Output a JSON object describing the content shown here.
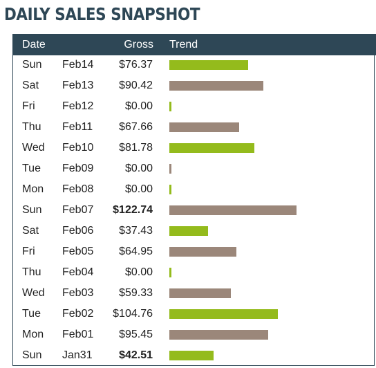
{
  "header": {
    "title": "DAILY SALES SNAPSHOT"
  },
  "table": {
    "columns": [
      "Date",
      "Gross",
      "Trend"
    ],
    "rows": [
      {
        "day": "Sun",
        "date": "Feb14",
        "gross": {
          "value": 76.37,
          "label": "$76.37"
        },
        "color": "#94bb1c",
        "bold": false
      },
      {
        "day": "Sat",
        "date": "Feb13",
        "gross": {
          "value": 90.42,
          "label": "$90.42"
        },
        "color": "#9b877a",
        "bold": false
      },
      {
        "day": "Fri",
        "date": "Feb12",
        "gross": {
          "value": 0,
          "label": "$0.00"
        },
        "color": "#94bb1c",
        "bold": false
      },
      {
        "day": "Thu",
        "date": "Feb11",
        "gross": {
          "value": 67.66,
          "label": "$67.66"
        },
        "color": "#9b877a",
        "bold": false
      },
      {
        "day": "Wed",
        "date": "Feb10",
        "gross": {
          "value": 81.78,
          "label": "$81.78"
        },
        "color": "#94bb1c",
        "bold": false
      },
      {
        "day": "Tue",
        "date": "Feb09",
        "gross": {
          "value": 0,
          "label": "$0.00"
        },
        "color": "#9b877a",
        "bold": false
      },
      {
        "day": "Mon",
        "date": "Feb08",
        "gross": {
          "value": 0,
          "label": "$0.00"
        },
        "color": "#94bb1c",
        "bold": false
      },
      {
        "day": "Sun",
        "date": "Feb07",
        "gross": {
          "value": 122.74,
          "label": "$122.74"
        },
        "color": "#9b877a",
        "bold": true
      },
      {
        "day": "Sat",
        "date": "Feb06",
        "gross": {
          "value": 37.43,
          "label": "$37.43"
        },
        "color": "#94bb1c",
        "bold": false
      },
      {
        "day": "Fri",
        "date": "Feb05",
        "gross": {
          "value": 64.95,
          "label": "$64.95"
        },
        "color": "#9b877a",
        "bold": false
      },
      {
        "day": "Thu",
        "date": "Feb04",
        "gross": {
          "value": 0,
          "label": "$0.00"
        },
        "color": "#94bb1c",
        "bold": false
      },
      {
        "day": "Wed",
        "date": "Feb03",
        "gross": {
          "value": 59.33,
          "label": "$59.33"
        },
        "color": "#9b877a",
        "bold": false
      },
      {
        "day": "Tue",
        "date": "Feb02",
        "gross": {
          "value": 104.76,
          "label": "$104.76"
        },
        "color": "#94bb1c",
        "bold": false
      },
      {
        "day": "Mon",
        "date": "Feb01",
        "gross": {
          "value": 95.45,
          "label": "$95.45"
        },
        "color": "#9b877a",
        "bold": false
      },
      {
        "day": "Sun",
        "date": "Jan31",
        "gross": {
          "value": 42.51,
          "label": "$42.51"
        },
        "color": "#94bb1c",
        "bold": true
      }
    ]
  }
}
